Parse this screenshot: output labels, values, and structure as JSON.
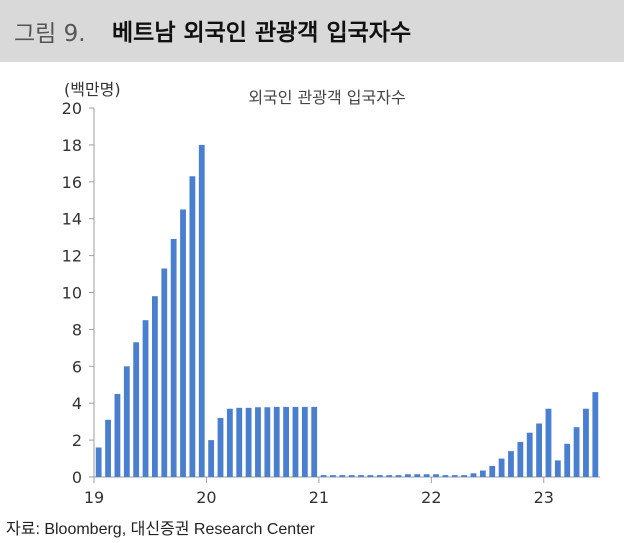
{
  "header": {
    "figure_label": "그림 9.",
    "title": "베트남 외국인 관광객 입국자수"
  },
  "unit_label": "(백만명)",
  "source": "자료: Bloomberg, 대신증권 Research Center",
  "colors": {
    "bar": "#4a7fcf",
    "header_bg": "#d9d9d9",
    "axis": "#9e9e9e"
  },
  "chart_data": {
    "type": "bar",
    "title": "외국인 관광객 입국자수",
    "ylabel": "(백만명)",
    "ylim": [
      0,
      20
    ],
    "yticks": [
      0,
      2,
      4,
      6,
      8,
      10,
      12,
      14,
      16,
      18,
      20
    ],
    "xtick_labels": [
      "19",
      "20",
      "21",
      "22",
      "23"
    ],
    "x_start": "2019-01",
    "x_frequency": "monthly",
    "values": [
      1.6,
      3.1,
      4.5,
      6.0,
      7.3,
      8.5,
      9.8,
      11.3,
      12.9,
      14.5,
      16.3,
      18.0,
      2.0,
      3.2,
      3.7,
      3.75,
      3.75,
      3.78,
      3.78,
      3.8,
      3.8,
      3.8,
      3.8,
      3.8,
      0.1,
      0.1,
      0.1,
      0.1,
      0.1,
      0.1,
      0.1,
      0.1,
      0.1,
      0.15,
      0.15,
      0.15,
      0.15,
      0.1,
      0.1,
      0.1,
      0.2,
      0.35,
      0.6,
      1.0,
      1.4,
      1.9,
      2.4,
      2.9,
      3.7,
      0.9,
      1.8,
      2.7,
      3.7,
      4.6
    ],
    "grid": false,
    "legend": "none"
  }
}
